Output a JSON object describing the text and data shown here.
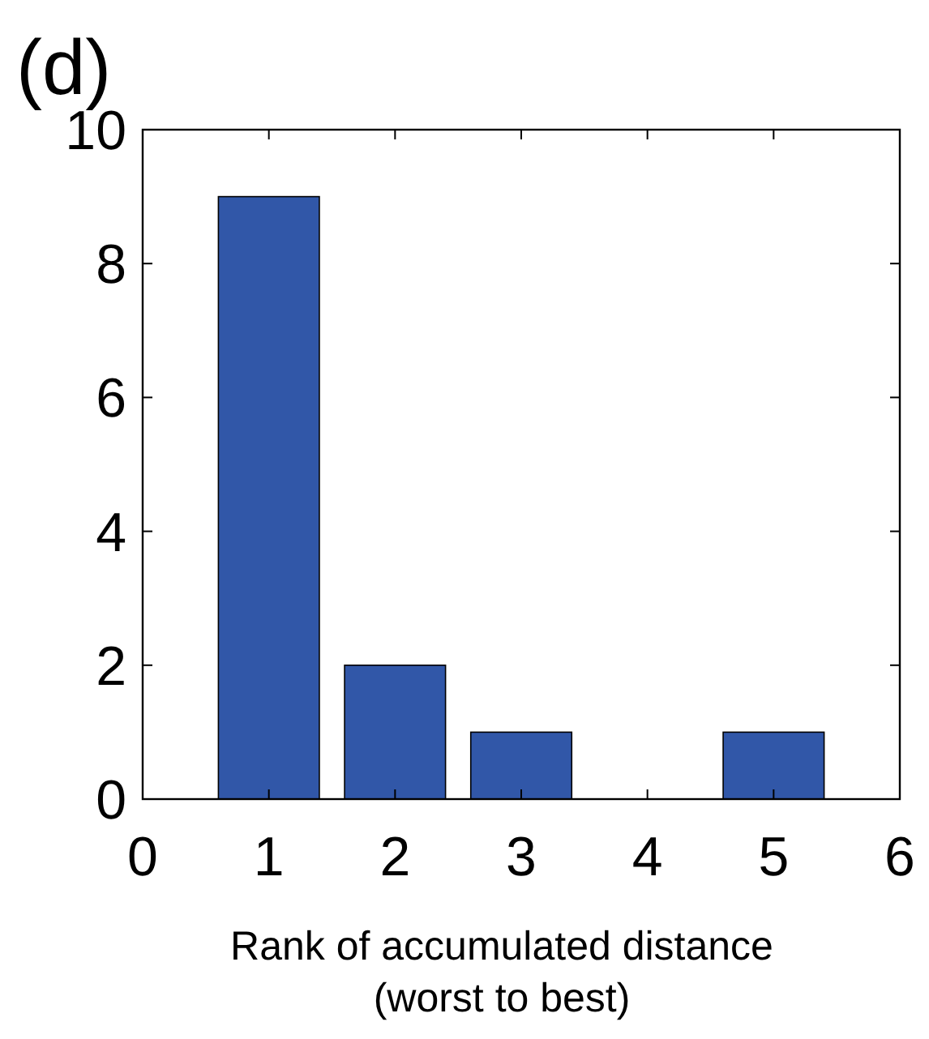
{
  "chart_data": {
    "type": "bar",
    "title": "(d)",
    "xlabel": "Rank of accumulated distance\n(worst to best)",
    "x": [
      1,
      2,
      3,
      4,
      5
    ],
    "values": [
      9,
      2,
      1,
      0,
      1
    ],
    "color": "#3157a8",
    "xlim": [
      0,
      6
    ],
    "xticks": [
      0,
      1,
      2,
      3,
      4,
      5,
      6
    ],
    "ylim": [
      0,
      10
    ],
    "yticks": [
      0,
      2,
      4,
      6,
      8,
      10
    ],
    "grid": false
  }
}
